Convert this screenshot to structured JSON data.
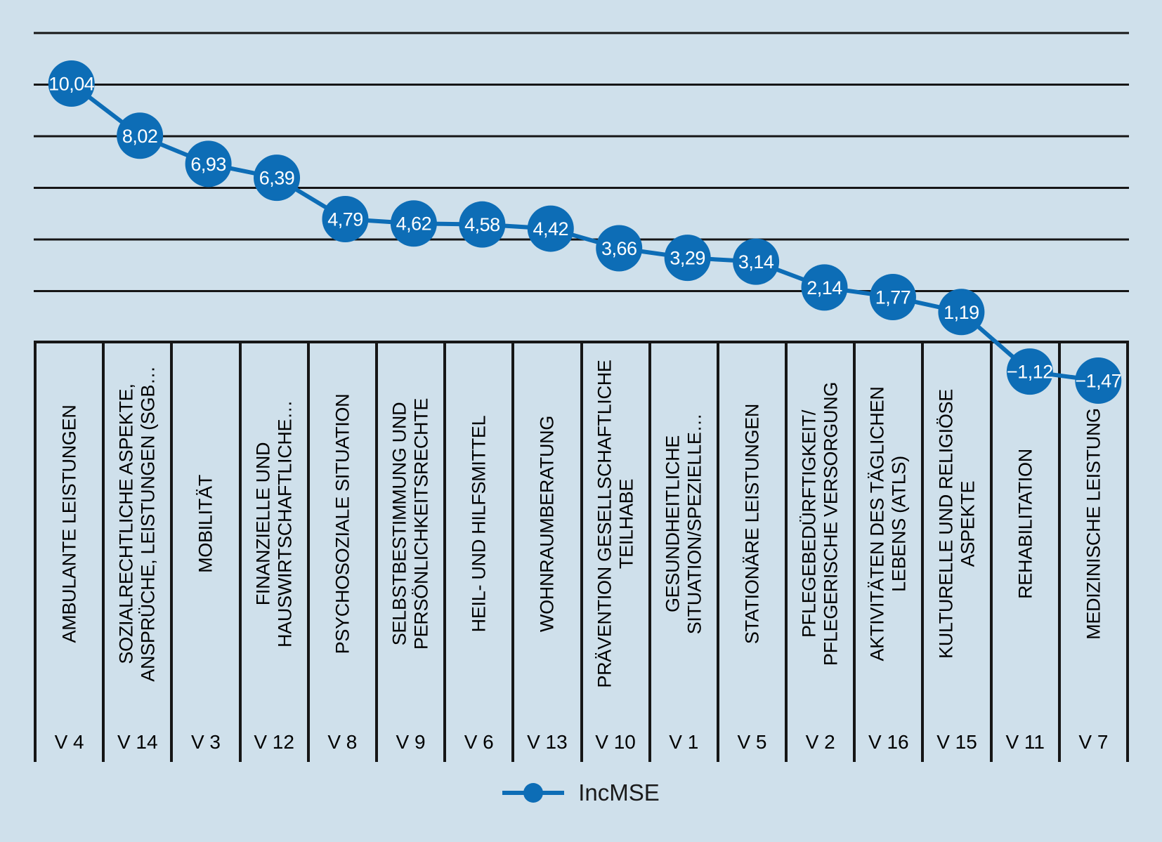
{
  "chart_data": {
    "type": "line",
    "legend_position": "bottom",
    "gridline_values": [
      12,
      10,
      8,
      6,
      4,
      2
    ],
    "series": [
      {
        "name": "IncMSE",
        "values": [
          10.04,
          8.02,
          6.93,
          6.39,
          4.79,
          4.62,
          4.58,
          4.42,
          3.66,
          3.29,
          3.14,
          2.14,
          1.77,
          1.19,
          -1.12,
          -1.47
        ],
        "point_labels": [
          "10,04",
          "8,02",
          "6,93",
          "6,39",
          "4,79",
          "4,62",
          "4,58",
          "4,42",
          "3,66",
          "3,29",
          "3,14",
          "2,14",
          "1,77",
          "1,19",
          "−1,12",
          "−1,47"
        ]
      }
    ],
    "categories": [
      {
        "label_lines": [
          "AMBULANTE LEISTUNGEN"
        ],
        "code": "V 4"
      },
      {
        "label_lines": [
          "SOZIALRECHTLICHE ASPEKTE,",
          "ANSPRÜCHE, LEISTUNGEN (SGB…"
        ],
        "code": "V 14"
      },
      {
        "label_lines": [
          "MOBILITÄT"
        ],
        "code": "V 3"
      },
      {
        "label_lines": [
          "FINANZIELLE UND",
          "HAUSWIRTSCHAFTLICHE…"
        ],
        "code": "V 12"
      },
      {
        "label_lines": [
          "PSYCHOSOZIALE SITUATION"
        ],
        "code": "V 8"
      },
      {
        "label_lines": [
          "SELBSTBESTIMMUNG UND",
          "PERSÖNLICHKEITSRECHTE"
        ],
        "code": "V 9"
      },
      {
        "label_lines": [
          "HEIL- UND HILFSMITTEL"
        ],
        "code": "V 6"
      },
      {
        "label_lines": [
          "WOHNRAUMBERATUNG"
        ],
        "code": "V 13"
      },
      {
        "label_lines": [
          "PRÄVENTION GESELLSCHAFTLICHE",
          "TEILHABE"
        ],
        "code": "V 10"
      },
      {
        "label_lines": [
          "GESUNDHEITLICHE",
          "SITUATION/SPEZIELLE…"
        ],
        "code": "V 1"
      },
      {
        "label_lines": [
          "STATIONÄRE LEISTUNGEN"
        ],
        "code": "V 5"
      },
      {
        "label_lines": [
          "PFLEGEBEDÜRFTIGKEIT/",
          "PFLEGERISCHE VERSORGUNG"
        ],
        "code": "V 2"
      },
      {
        "label_lines": [
          "AKTIVITÄTEN DES TÄGLICHEN",
          "LEBENS (ATLS)"
        ],
        "code": "V 16"
      },
      {
        "label_lines": [
          "KULTURELLE UND RELIGIÖSE",
          "ASPEKTE"
        ],
        "code": "V 15"
      },
      {
        "label_lines": [
          "REHABILITATION"
        ],
        "code": "V 11"
      },
      {
        "label_lines": [
          "MEDIZINISCHE LEISTUNG"
        ],
        "code": "V 7"
      }
    ],
    "colors": {
      "background": "#cfe0eb",
      "accent": "#0d6db6",
      "grid": "#161616",
      "label_text": "#000000",
      "point_label_text": "#ffffff"
    }
  }
}
